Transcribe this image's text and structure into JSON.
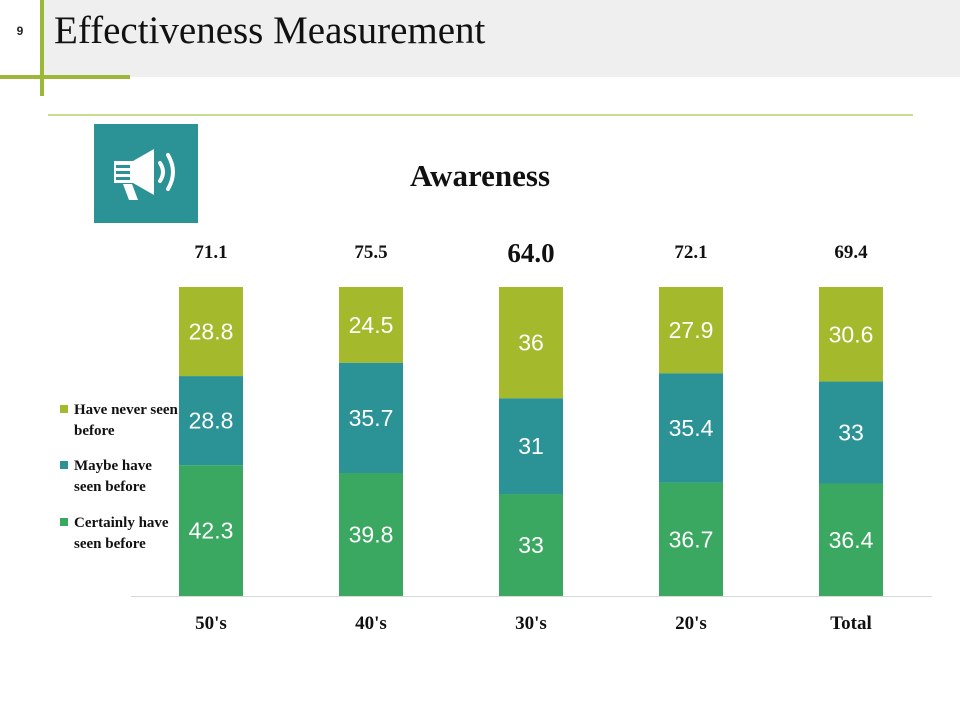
{
  "slide": {
    "number": "9",
    "title": "Effectiveness Measurement"
  },
  "icon": "megaphone-icon",
  "colors": {
    "accent": "#9cb836",
    "never": "#a4b92b",
    "maybe": "#2b9296",
    "certainly": "#3aa860",
    "icon_bg": "#2b9296"
  },
  "chart_data": {
    "type": "bar",
    "stacked": true,
    "title": "Awareness",
    "categories": [
      "50's",
      "40's",
      "30's",
      "20's",
      "Total"
    ],
    "series": [
      {
        "name": "Certainly have seen before",
        "values": [
          42.3,
          39.8,
          33,
          36.7,
          36.4
        ],
        "labels": [
          "42.3",
          "39.8",
          "33",
          "36.7",
          "36.4"
        ]
      },
      {
        "name": "Maybe have seen before",
        "values": [
          28.8,
          35.7,
          31,
          35.4,
          33
        ],
        "labels": [
          "28.8",
          "35.7",
          "31",
          "35.4",
          "33"
        ]
      },
      {
        "name": "Have never seen before",
        "values": [
          28.8,
          24.5,
          36,
          27.9,
          30.6
        ],
        "labels": [
          "28.8",
          "24.5",
          "36",
          "27.9",
          "30.6"
        ]
      }
    ],
    "top_labels": [
      "71.1",
      "75.5",
      "64.0",
      "72.1",
      "69.4"
    ],
    "highlighted_index": 2,
    "ylim": [
      0,
      100
    ],
    "legend_position": "left"
  }
}
